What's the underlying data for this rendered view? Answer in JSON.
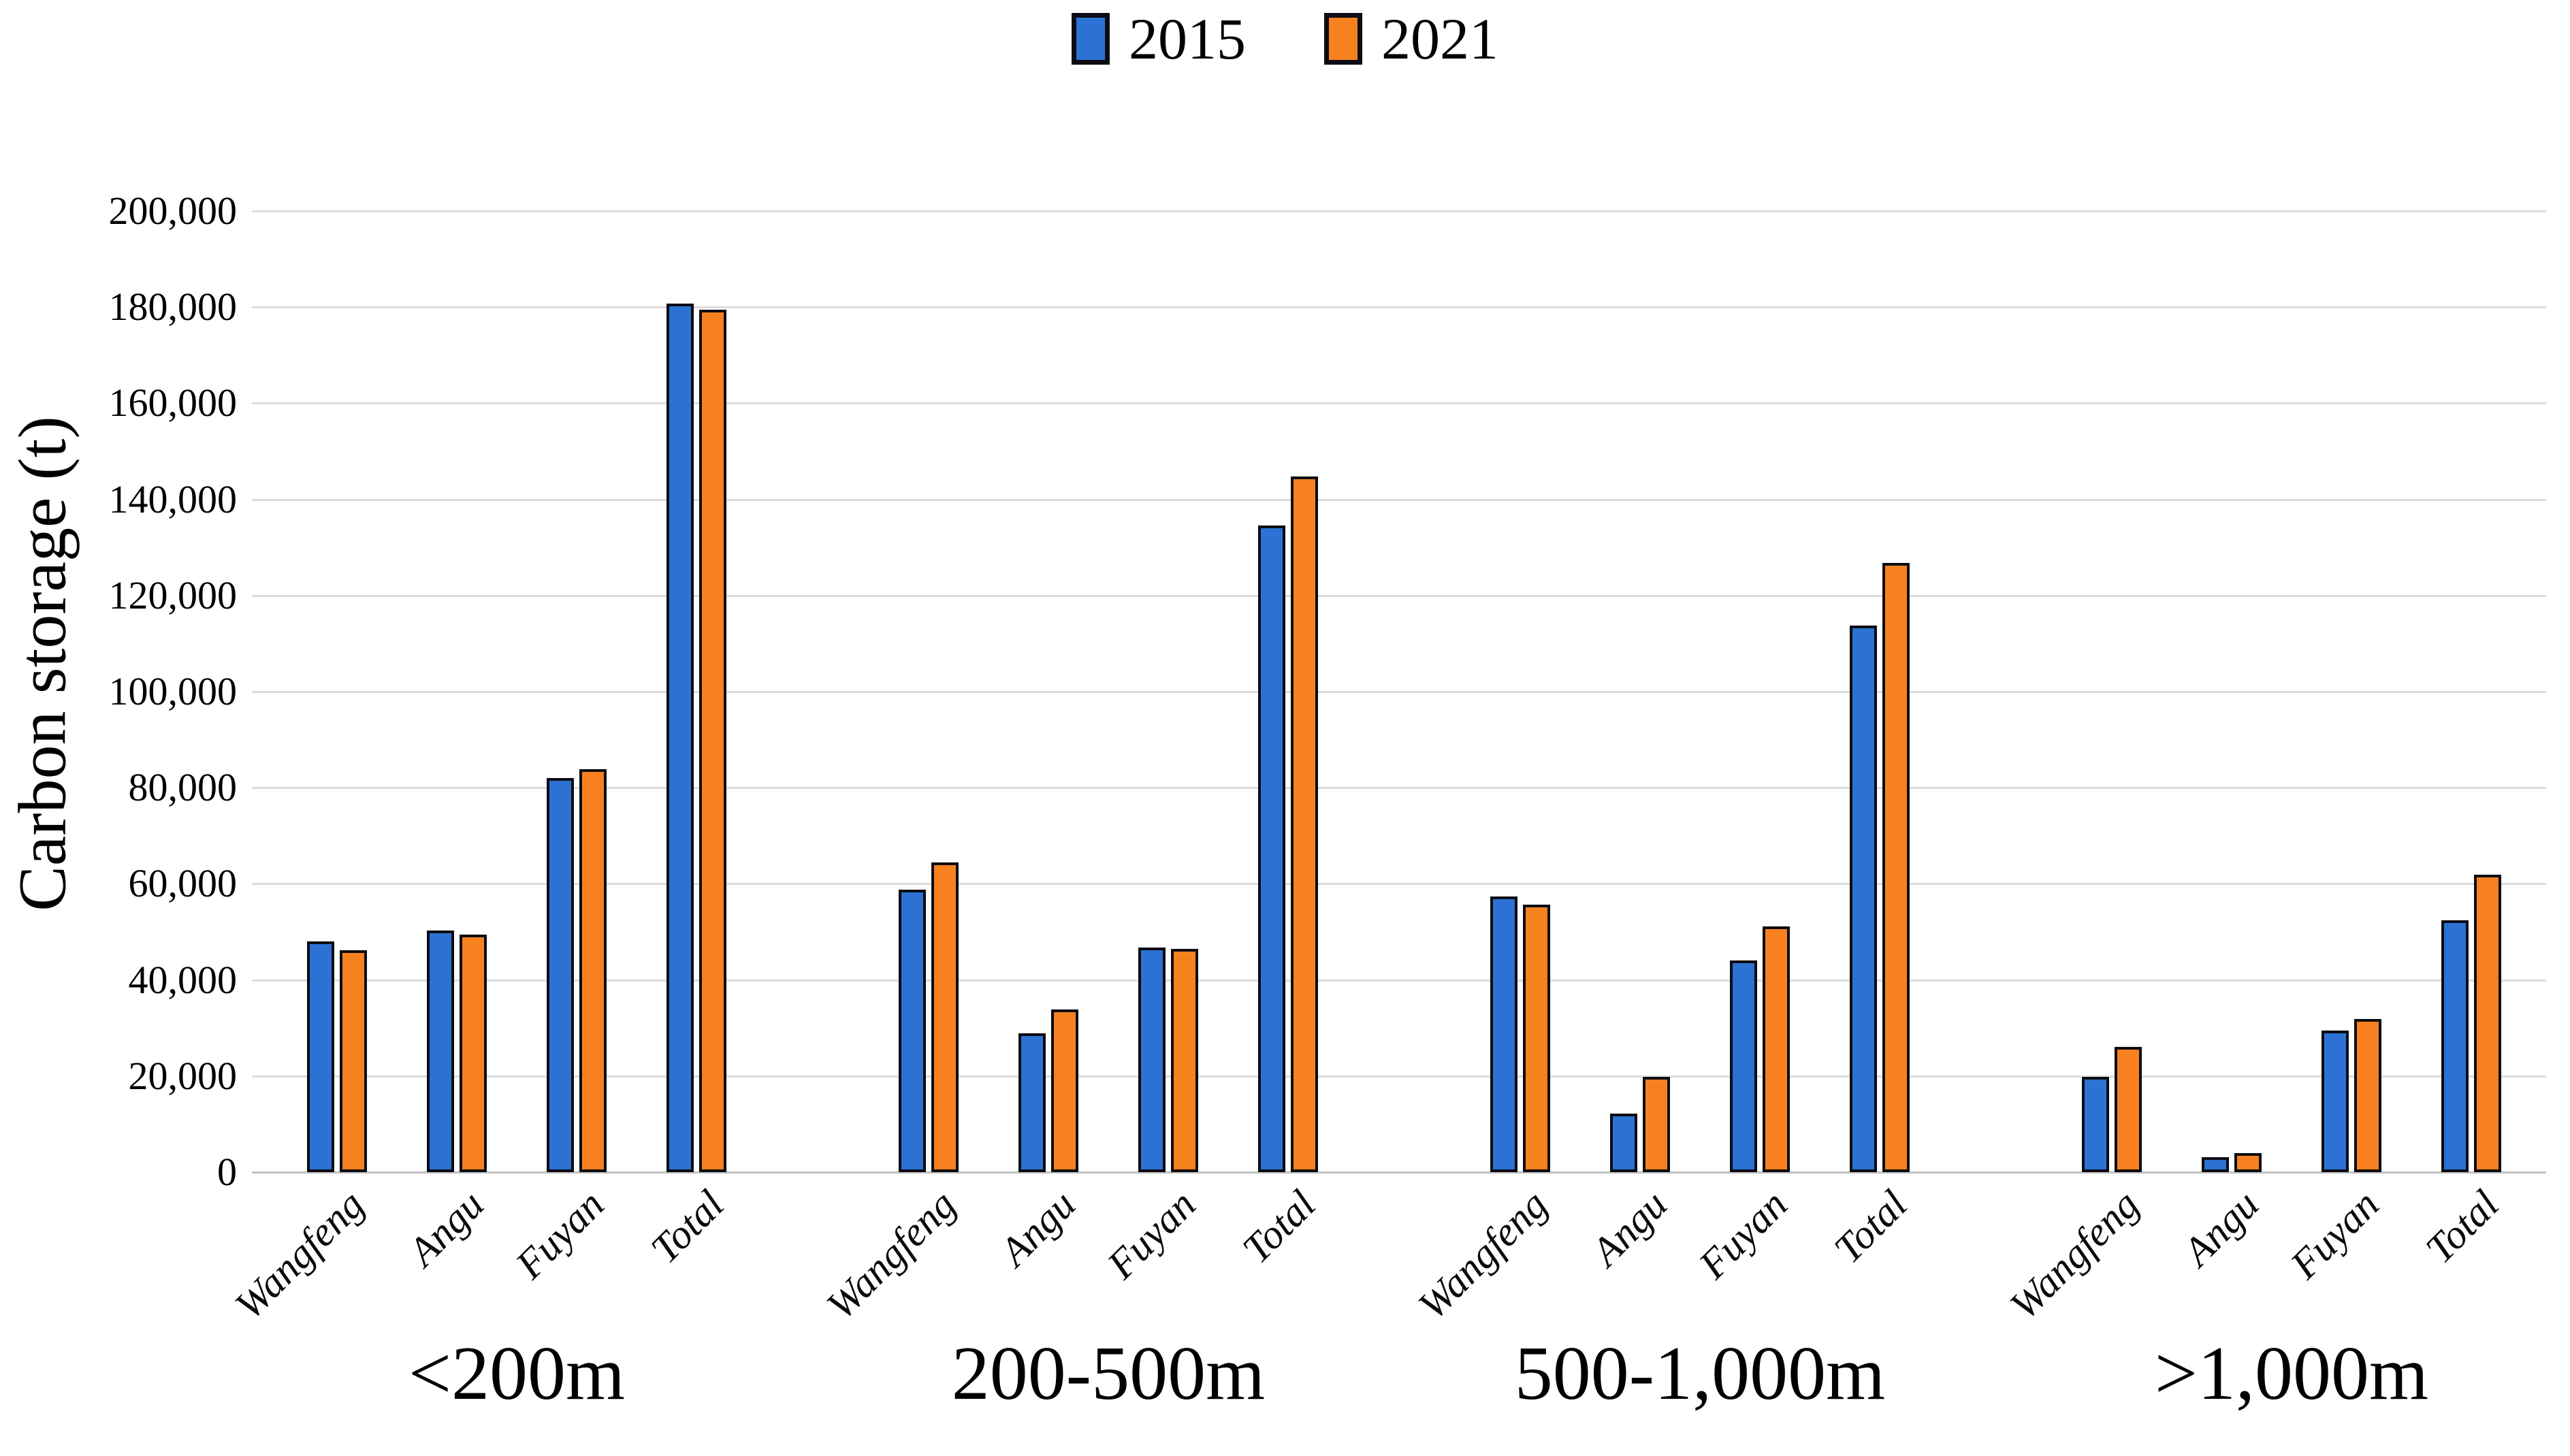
{
  "legend": {
    "items": [
      {
        "label": "2015",
        "color": "#2b72d4"
      },
      {
        "label": "2021",
        "color": "#f8811f"
      }
    ]
  },
  "chart_data": {
    "type": "bar",
    "title": "",
    "xlabel": "",
    "ylabel": "Carbon storage (t)",
    "ylim": [
      0,
      200000
    ],
    "ytick_step": 20000,
    "ytick_labels": [
      "0",
      "20,000",
      "40,000",
      "60,000",
      "80,000",
      "100,000",
      "120,000",
      "140,000",
      "160,000",
      "180,000",
      "200,000"
    ],
    "grid": "horizontal",
    "legend_position": "top-center",
    "bar_outline_color": "#0c0c12",
    "gridline_color": "#dcdcdc",
    "group_labels": [
      "<200m",
      "200-500m",
      "500-1,000m",
      ">1,000m"
    ],
    "categories": [
      "Wangfeng",
      "Angu",
      "Fuyan",
      "Total"
    ],
    "series": [
      {
        "name": "2015",
        "color": "#2b72d4",
        "values_by_group": [
          [
            48000,
            50300,
            82000,
            180800
          ],
          [
            58800,
            28900,
            46800,
            134500
          ],
          [
            57400,
            12200,
            44000,
            113700
          ],
          [
            19800,
            3100,
            29500,
            52400
          ]
        ]
      },
      {
        "name": "2021",
        "color": "#f8811f",
        "values_by_group": [
          [
            46200,
            49500,
            83800,
            179500
          ],
          [
            64500,
            33900,
            46400,
            144800
          ],
          [
            55700,
            19900,
            51200,
            126800
          ],
          [
            26100,
            3900,
            31900,
            61900
          ]
        ]
      }
    ]
  }
}
